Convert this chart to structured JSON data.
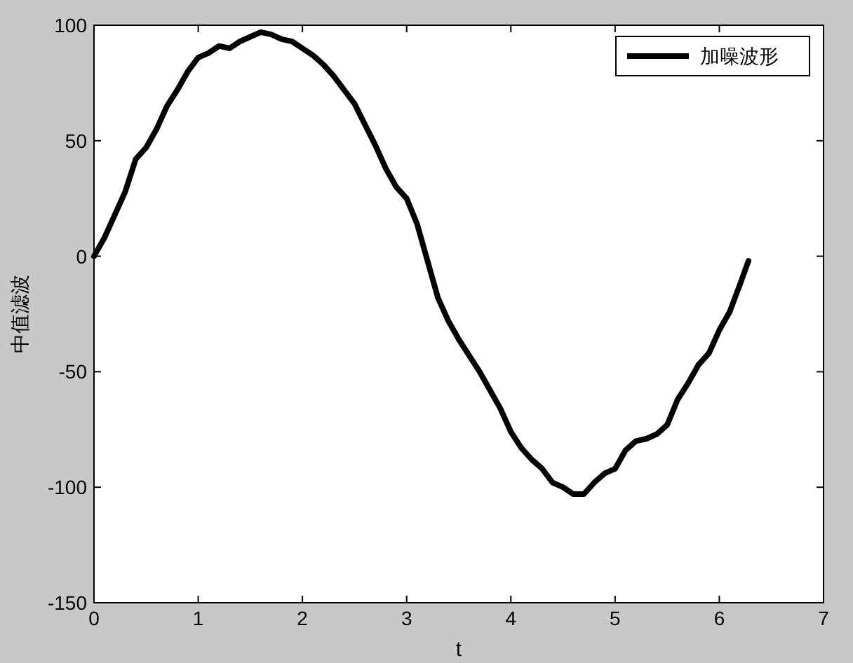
{
  "chart_data": {
    "type": "line",
    "xlabel": "t",
    "ylabel": "中值滤波",
    "xlim": [
      0,
      7
    ],
    "ylim": [
      -150,
      100
    ],
    "xticks": [
      0,
      1,
      2,
      3,
      4,
      5,
      6,
      7
    ],
    "yticks": [
      -150,
      -100,
      -50,
      0,
      50,
      100
    ],
    "grid": false,
    "legend": "top right",
    "marker": "none",
    "line_style": "solid",
    "series": [
      {
        "name": "加噪波形",
        "color": "#000000",
        "x": [
          0,
          0.1,
          0.2,
          0.3,
          0.4,
          0.5,
          0.6,
          0.7,
          0.8,
          0.9,
          1.0,
          1.1,
          1.2,
          1.3,
          1.4,
          1.5,
          1.6,
          1.7,
          1.8,
          1.9,
          2.0,
          2.1,
          2.2,
          2.3,
          2.4,
          2.5,
          2.6,
          2.7,
          2.8,
          2.9,
          3.0,
          3.1,
          3.2,
          3.3,
          3.4,
          3.5,
          3.6,
          3.7,
          3.8,
          3.9,
          4.0,
          4.1,
          4.2,
          4.3,
          4.4,
          4.5,
          4.6,
          4.7,
          4.8,
          4.9,
          5.0,
          5.1,
          5.2,
          5.3,
          5.4,
          5.5,
          5.6,
          5.7,
          5.8,
          5.9,
          6.0,
          6.1,
          6.2,
          6.28
        ],
        "values": [
          0,
          8,
          18,
          28,
          42,
          47,
          55,
          65,
          72,
          80,
          86,
          88,
          91,
          90,
          93,
          95,
          97,
          96,
          94,
          93,
          90,
          87,
          83,
          78,
          72,
          66,
          57,
          48,
          38,
          30,
          25,
          14,
          -2,
          -18,
          -28,
          -36,
          -43,
          -50,
          -58,
          -66,
          -76,
          -83,
          -88,
          -92,
          -98,
          -100,
          -103,
          -103,
          -98,
          -94,
          -92,
          -84,
          -80,
          -79,
          -77,
          -73,
          -62,
          -55,
          -47,
          -42,
          -32,
          -24,
          -12,
          -2
        ]
      }
    ]
  }
}
